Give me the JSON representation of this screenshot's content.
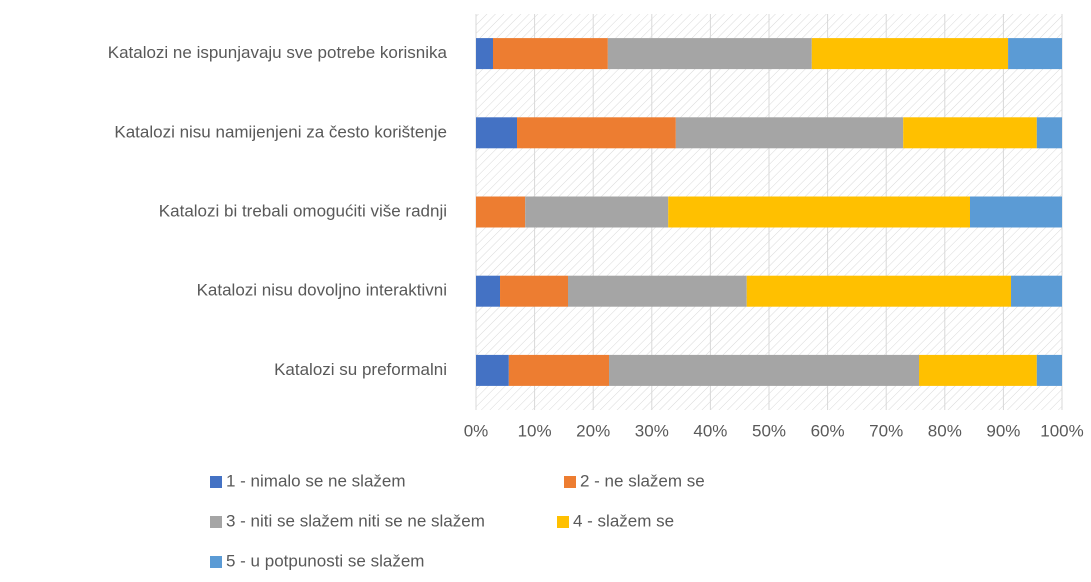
{
  "chart_data": {
    "type": "bar",
    "orientation": "horizontal",
    "stacked": true,
    "categories": [
      "Katalozi ne ispunjavaju sve potrebe korisnika",
      "Katalozi nisu namijenjeni za često korištenje",
      "Katalozi bi trebali omogućiti više radnji",
      "Katalozi nisu dovoljno interaktivni",
      "Katalozi su preformalni"
    ],
    "series": [
      {
        "name": "1 - nimalo se ne slažem",
        "color": "#4472c4",
        "values": [
          2.9,
          7.0,
          0,
          4.1,
          5.6
        ]
      },
      {
        "name": "2 - ne slažem se",
        "color": "#ed7d31",
        "values": [
          19.6,
          27.1,
          8.4,
          11.6,
          17.1
        ]
      },
      {
        "name": "3 - niti se slažem niti se ne slažem",
        "color": "#a5a5a5",
        "values": [
          34.8,
          38.8,
          24.4,
          30.5,
          52.9
        ]
      },
      {
        "name": "4 - slažem se",
        "color": "#ffc000",
        "values": [
          33.5,
          22.8,
          51.5,
          45.1,
          20.1
        ]
      },
      {
        "name": "5 - u potpunosti se slažem",
        "color": "#5b9bd5",
        "values": [
          9.2,
          4.3,
          15.7,
          8.7,
          4.3
        ]
      }
    ],
    "xlim": [
      0,
      100
    ],
    "xticks": [
      {
        "value": 0,
        "label": "0%"
      },
      {
        "value": 10,
        "label": "10%"
      },
      {
        "value": 20,
        "label": "20%"
      },
      {
        "value": 30,
        "label": "30%"
      },
      {
        "value": 40,
        "label": "40%"
      },
      {
        "value": 50,
        "label": "50%"
      },
      {
        "value": 60,
        "label": "60%"
      },
      {
        "value": 70,
        "label": "70%"
      },
      {
        "value": 80,
        "label": "80%"
      },
      {
        "value": 90,
        "label": "90%"
      },
      {
        "value": 100,
        "label": "100%"
      }
    ],
    "grid": true,
    "legend": "bottom"
  }
}
